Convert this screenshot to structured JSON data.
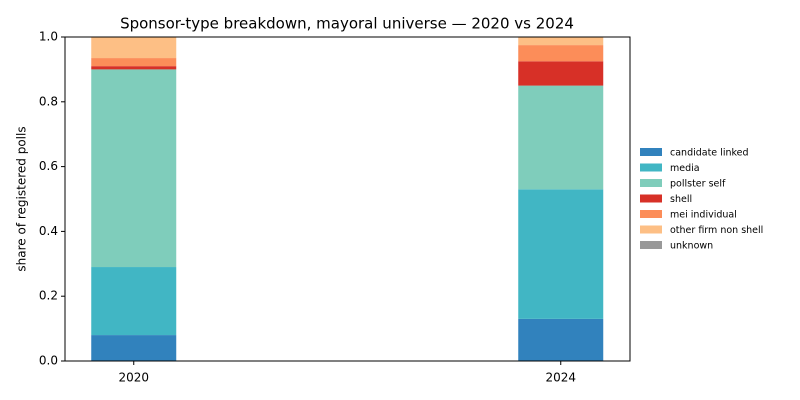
{
  "chart_data": {
    "type": "stacked_bar",
    "title": "Sponsor-type breakdown, mayoral universe — 2020 vs 2024",
    "y_label": "share of registered polls",
    "categories": [
      "2020",
      "2024"
    ],
    "series": [
      {
        "name": "candidate linked",
        "color": "#3182bd",
        "values": [
          0.08,
          0.13
        ]
      },
      {
        "name": "media",
        "color": "#41b6c4",
        "values": [
          0.21,
          0.4
        ]
      },
      {
        "name": "pollster self",
        "color": "#7fcdbb",
        "values": [
          0.61,
          0.32
        ]
      },
      {
        "name": "shell",
        "color": "#d73027",
        "values": [
          0.01,
          0.075
        ]
      },
      {
        "name": "mei individual",
        "color": "#fc8d59",
        "values": [
          0.025,
          0.05
        ]
      },
      {
        "name": "other firm non shell",
        "color": "#fdbf85",
        "values": [
          0.065,
          0.025
        ]
      },
      {
        "name": "unknown",
        "color": "#999999",
        "values": [
          0,
          0
        ]
      }
    ],
    "ylim": [
      0,
      1
    ],
    "yticks": [
      {
        "value": 0,
        "label": "0.0"
      },
      0.2,
      0.4,
      0.6,
      0.8,
      {
        "value": 1,
        "label": "1.0"
      }
    ],
    "legend": "right"
  }
}
